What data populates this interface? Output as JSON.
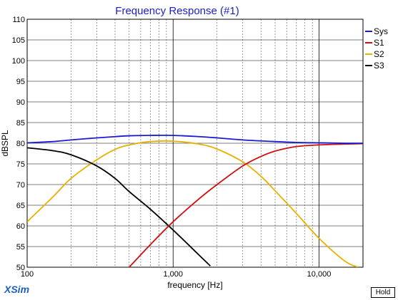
{
  "app": {
    "brand": "XSim",
    "hold_label": "Hold"
  },
  "chart_data": {
    "type": "line",
    "title": "Frequency Response (#1)",
    "xlabel": "frequency [Hz]",
    "ylabel": "dBSPL",
    "xscale": "log",
    "xlim": [
      100,
      20000
    ],
    "ylim": [
      50,
      110
    ],
    "x_ticks": [
      100,
      1000,
      10000
    ],
    "x_tick_labels": [
      "100",
      "1,000",
      "10,000"
    ],
    "y_ticks": [
      50,
      55,
      60,
      65,
      70,
      75,
      80,
      85,
      90,
      95,
      100,
      105,
      110
    ],
    "grid": true,
    "legend_position": "right",
    "series": [
      {
        "name": "Sys",
        "color": "#1a1ad6",
        "x": [
          100,
          150,
          200,
          300,
          400,
          500,
          700,
          1000,
          1500,
          2000,
          3000,
          5000,
          7000,
          10000,
          15000,
          20000
        ],
        "y": [
          80.1,
          80.4,
          80.8,
          81.3,
          81.6,
          81.8,
          81.9,
          81.9,
          81.6,
          81.3,
          80.8,
          80.4,
          80.2,
          80.1,
          80.0,
          80.0
        ]
      },
      {
        "name": "S1",
        "color": "#d01010",
        "x": [
          500,
          700,
          1000,
          1500,
          2000,
          3000,
          4000,
          5000,
          7000,
          10000,
          15000,
          20000
        ],
        "y": [
          50,
          55.5,
          61,
          66.5,
          70,
          74.5,
          76.8,
          78.1,
          79.2,
          79.6,
          79.8,
          79.9
        ]
      },
      {
        "name": "S2",
        "color": "#e8b000",
        "x": [
          100,
          150,
          200,
          300,
          400,
          500,
          700,
          1000,
          1500,
          2000,
          3000,
          4000,
          5000,
          7000,
          10000,
          15000,
          18500
        ],
        "y": [
          61,
          67,
          71.5,
          76,
          78.5,
          79.6,
          80.4,
          80.5,
          79.8,
          78.6,
          75.5,
          72,
          68.5,
          63,
          57,
          51.5,
          50
        ]
      },
      {
        "name": "S3",
        "color": "#000000",
        "x": [
          100,
          150,
          200,
          300,
          400,
          500,
          700,
          1000,
          1500,
          1800
        ],
        "y": [
          78.9,
          78.2,
          77.2,
          74.5,
          71.5,
          68.3,
          64,
          59,
          53,
          50.3
        ]
      }
    ]
  }
}
